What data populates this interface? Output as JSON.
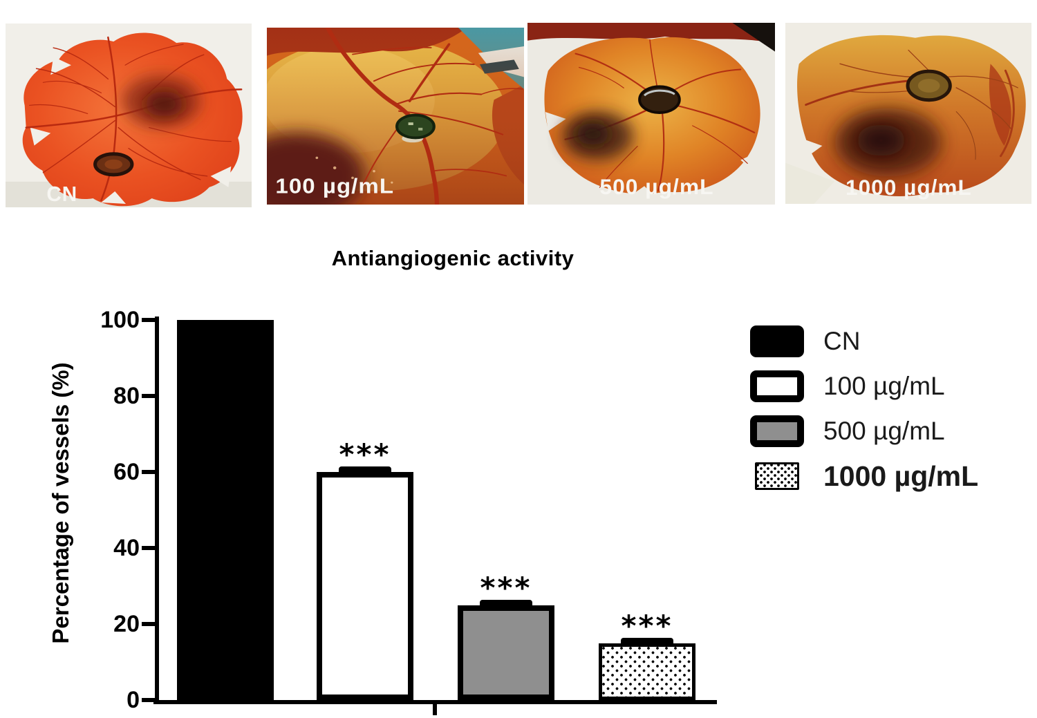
{
  "figure": {
    "panels": [
      {
        "label": "CN"
      },
      {
        "label": "100 µg/mL"
      },
      {
        "label": "500 µg/mL"
      },
      {
        "label": "1000 µg/mL"
      }
    ]
  },
  "chart_data": {
    "type": "bar",
    "title": "Antiangiogenic activity",
    "xlabel": "",
    "ylabel": "Percentage of vessels (%)",
    "categories": [
      "CN",
      "100 µg/mL",
      "500 µg/mL",
      "1000 µg/mL"
    ],
    "values": [
      100,
      60,
      25,
      15
    ],
    "error": [
      0,
      1.5,
      1.5,
      1.5
    ],
    "significance": [
      "",
      "***",
      "***",
      "***"
    ],
    "ylim": [
      0,
      100
    ],
    "yticks": [
      0,
      20,
      40,
      60,
      80,
      100
    ],
    "grid": false,
    "legend_position": "right",
    "legend": [
      {
        "label": "CN",
        "fill": "#000000",
        "pattern": "solid"
      },
      {
        "label": "100 µg/mL",
        "fill": "#ffffff",
        "pattern": "outline"
      },
      {
        "label": "500 µg/mL",
        "fill": "#8f8f8f",
        "pattern": "outline"
      },
      {
        "label": "1000 µg/mL",
        "fill": "#ffffff",
        "pattern": "dots"
      }
    ]
  }
}
